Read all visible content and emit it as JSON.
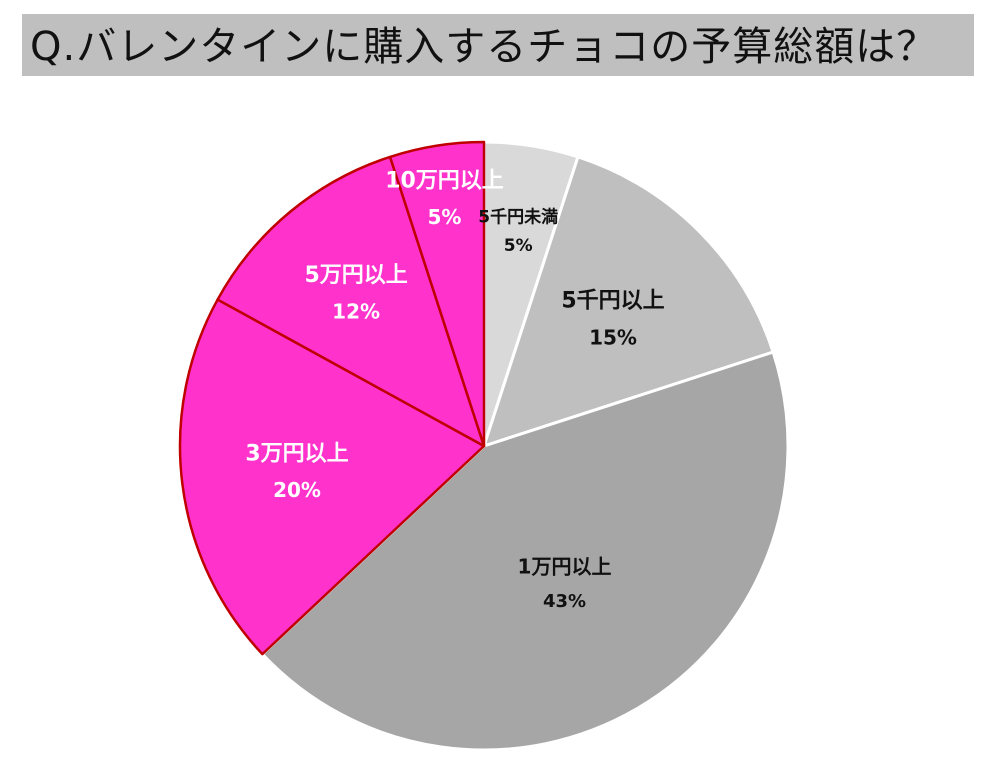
{
  "title": "Q.バレンタインに購入するチョコの予算総額は？",
  "chart_data": {
    "type": "pie",
    "title": "Q.バレンタインに購入するチョコの予算総額は？",
    "start": "12 o'clock, clockwise",
    "slices": [
      {
        "label": "5千円未満",
        "value": 5,
        "display": "5%",
        "color": "#d9d9d9",
        "stroke": "#ffffff",
        "text_color": "#111111"
      },
      {
        "label": "5千円以上",
        "value": 15,
        "display": "15%",
        "color": "#bfbfbf",
        "stroke": "#ffffff",
        "text_color": "#111111"
      },
      {
        "label": "1万円以上",
        "value": 43,
        "display": "43%",
        "color": "#a6a6a6",
        "stroke": "#ffffff",
        "text_color": "#111111"
      },
      {
        "label": "3万円以上",
        "value": 20,
        "display": "20%",
        "color": "#ff33cc",
        "stroke": "#c00000",
        "text_color": "#ffffff"
      },
      {
        "label": "5万円以上",
        "value": 12,
        "display": "12%",
        "color": "#ff33cc",
        "stroke": "#c00000",
        "text_color": "#ffffff"
      },
      {
        "label": "10万円以上",
        "value": 5,
        "display": "5%",
        "color": "#ff33cc",
        "stroke": "#c00000",
        "text_color": "#ffffff"
      }
    ]
  }
}
